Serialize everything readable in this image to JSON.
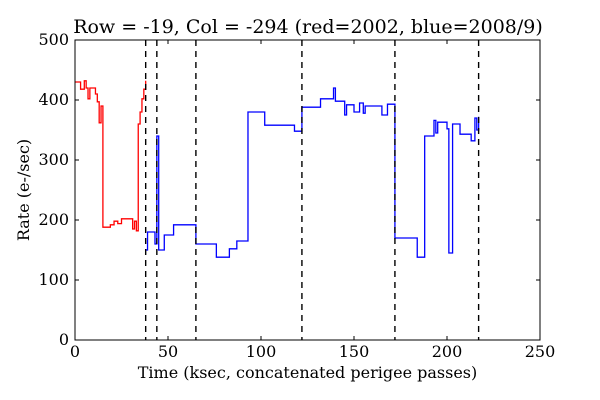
{
  "chart_data": {
    "type": "line",
    "title": "Row = -19, Col = -294 (red=2002, blue=2008/9)",
    "xlabel": "Time (ksec, concatenated perigee passes)",
    "ylabel": "Rate (e-/sec)",
    "xlim": [
      0,
      250
    ],
    "ylim": [
      0,
      500
    ],
    "xticks": [
      0,
      50,
      100,
      150,
      200,
      250
    ],
    "yticks": [
      0,
      100,
      200,
      300,
      400,
      500
    ],
    "grid": false,
    "step": true,
    "vlines": [
      38,
      44,
      65,
      122,
      172,
      217
    ],
    "series": [
      {
        "color": "#ff0000",
        "points": [
          [
            0,
            430
          ],
          [
            3,
            430
          ],
          [
            3,
            418
          ],
          [
            5,
            418
          ],
          [
            5,
            432
          ],
          [
            6,
            432
          ],
          [
            6,
            420
          ],
          [
            7,
            420
          ],
          [
            7,
            402
          ],
          [
            8,
            402
          ],
          [
            8,
            420
          ],
          [
            11,
            420
          ],
          [
            11,
            410
          ],
          [
            12,
            410
          ],
          [
            12,
            397
          ],
          [
            13,
            397
          ],
          [
            13,
            362
          ],
          [
            14,
            362
          ],
          [
            14,
            390
          ],
          [
            15,
            390
          ],
          [
            15,
            188
          ],
          [
            19,
            188
          ],
          [
            19,
            192
          ],
          [
            21,
            192
          ],
          [
            21,
            198
          ],
          [
            23,
            198
          ],
          [
            23,
            194
          ],
          [
            25,
            194
          ],
          [
            25,
            202
          ],
          [
            31,
            202
          ],
          [
            31,
            185
          ],
          [
            32,
            185
          ],
          [
            32,
            198
          ],
          [
            33,
            198
          ],
          [
            33,
            182
          ],
          [
            34,
            182
          ],
          [
            34,
            360
          ],
          [
            35,
            360
          ],
          [
            35,
            380
          ],
          [
            36,
            380
          ],
          [
            36,
            402
          ],
          [
            37,
            402
          ],
          [
            37,
            418
          ],
          [
            38,
            418
          ],
          [
            38,
            432
          ]
        ]
      },
      {
        "color": "#0000ff",
        "points": [
          [
            38,
            150
          ],
          [
            39,
            150
          ],
          [
            39,
            180
          ],
          [
            43,
            180
          ],
          [
            43,
            160
          ],
          [
            44,
            160
          ],
          [
            44,
            340
          ],
          [
            45,
            340
          ],
          [
            45,
            150
          ],
          [
            48,
            150
          ],
          [
            48,
            175
          ],
          [
            53,
            175
          ],
          [
            53,
            192
          ],
          [
            65,
            192
          ],
          [
            65,
            160
          ],
          [
            76,
            160
          ],
          [
            76,
            138
          ],
          [
            83,
            138
          ],
          [
            83,
            152
          ],
          [
            87,
            152
          ],
          [
            87,
            165
          ],
          [
            93,
            165
          ],
          [
            93,
            380
          ],
          [
            102,
            380
          ],
          [
            102,
            358
          ],
          [
            118,
            358
          ],
          [
            118,
            348
          ],
          [
            122,
            348
          ],
          [
            122,
            388
          ],
          [
            132,
            388
          ],
          [
            132,
            402
          ],
          [
            139,
            402
          ],
          [
            139,
            420
          ],
          [
            140,
            420
          ],
          [
            140,
            398
          ],
          [
            145,
            398
          ],
          [
            145,
            375
          ],
          [
            146,
            375
          ],
          [
            146,
            392
          ],
          [
            150,
            392
          ],
          [
            150,
            380
          ],
          [
            153,
            380
          ],
          [
            153,
            395
          ],
          [
            155,
            395
          ],
          [
            155,
            378
          ],
          [
            156,
            378
          ],
          [
            156,
            390
          ],
          [
            165,
            390
          ],
          [
            165,
            375
          ],
          [
            168,
            375
          ],
          [
            168,
            393
          ],
          [
            172,
            393
          ],
          [
            172,
            170
          ],
          [
            184,
            170
          ],
          [
            184,
            138
          ],
          [
            188,
            138
          ],
          [
            188,
            340
          ],
          [
            193,
            340
          ],
          [
            193,
            366
          ],
          [
            194,
            366
          ],
          [
            194,
            345
          ],
          [
            195,
            345
          ],
          [
            195,
            363
          ],
          [
            200,
            363
          ],
          [
            200,
            352
          ],
          [
            201,
            352
          ],
          [
            201,
            145
          ],
          [
            203,
            145
          ],
          [
            203,
            360
          ],
          [
            207,
            360
          ],
          [
            207,
            343
          ],
          [
            213,
            343
          ],
          [
            213,
            332
          ],
          [
            215,
            332
          ],
          [
            215,
            370
          ],
          [
            216,
            370
          ],
          [
            216,
            350
          ],
          [
            217,
            350
          ],
          [
            217,
            372
          ]
        ]
      }
    ]
  }
}
